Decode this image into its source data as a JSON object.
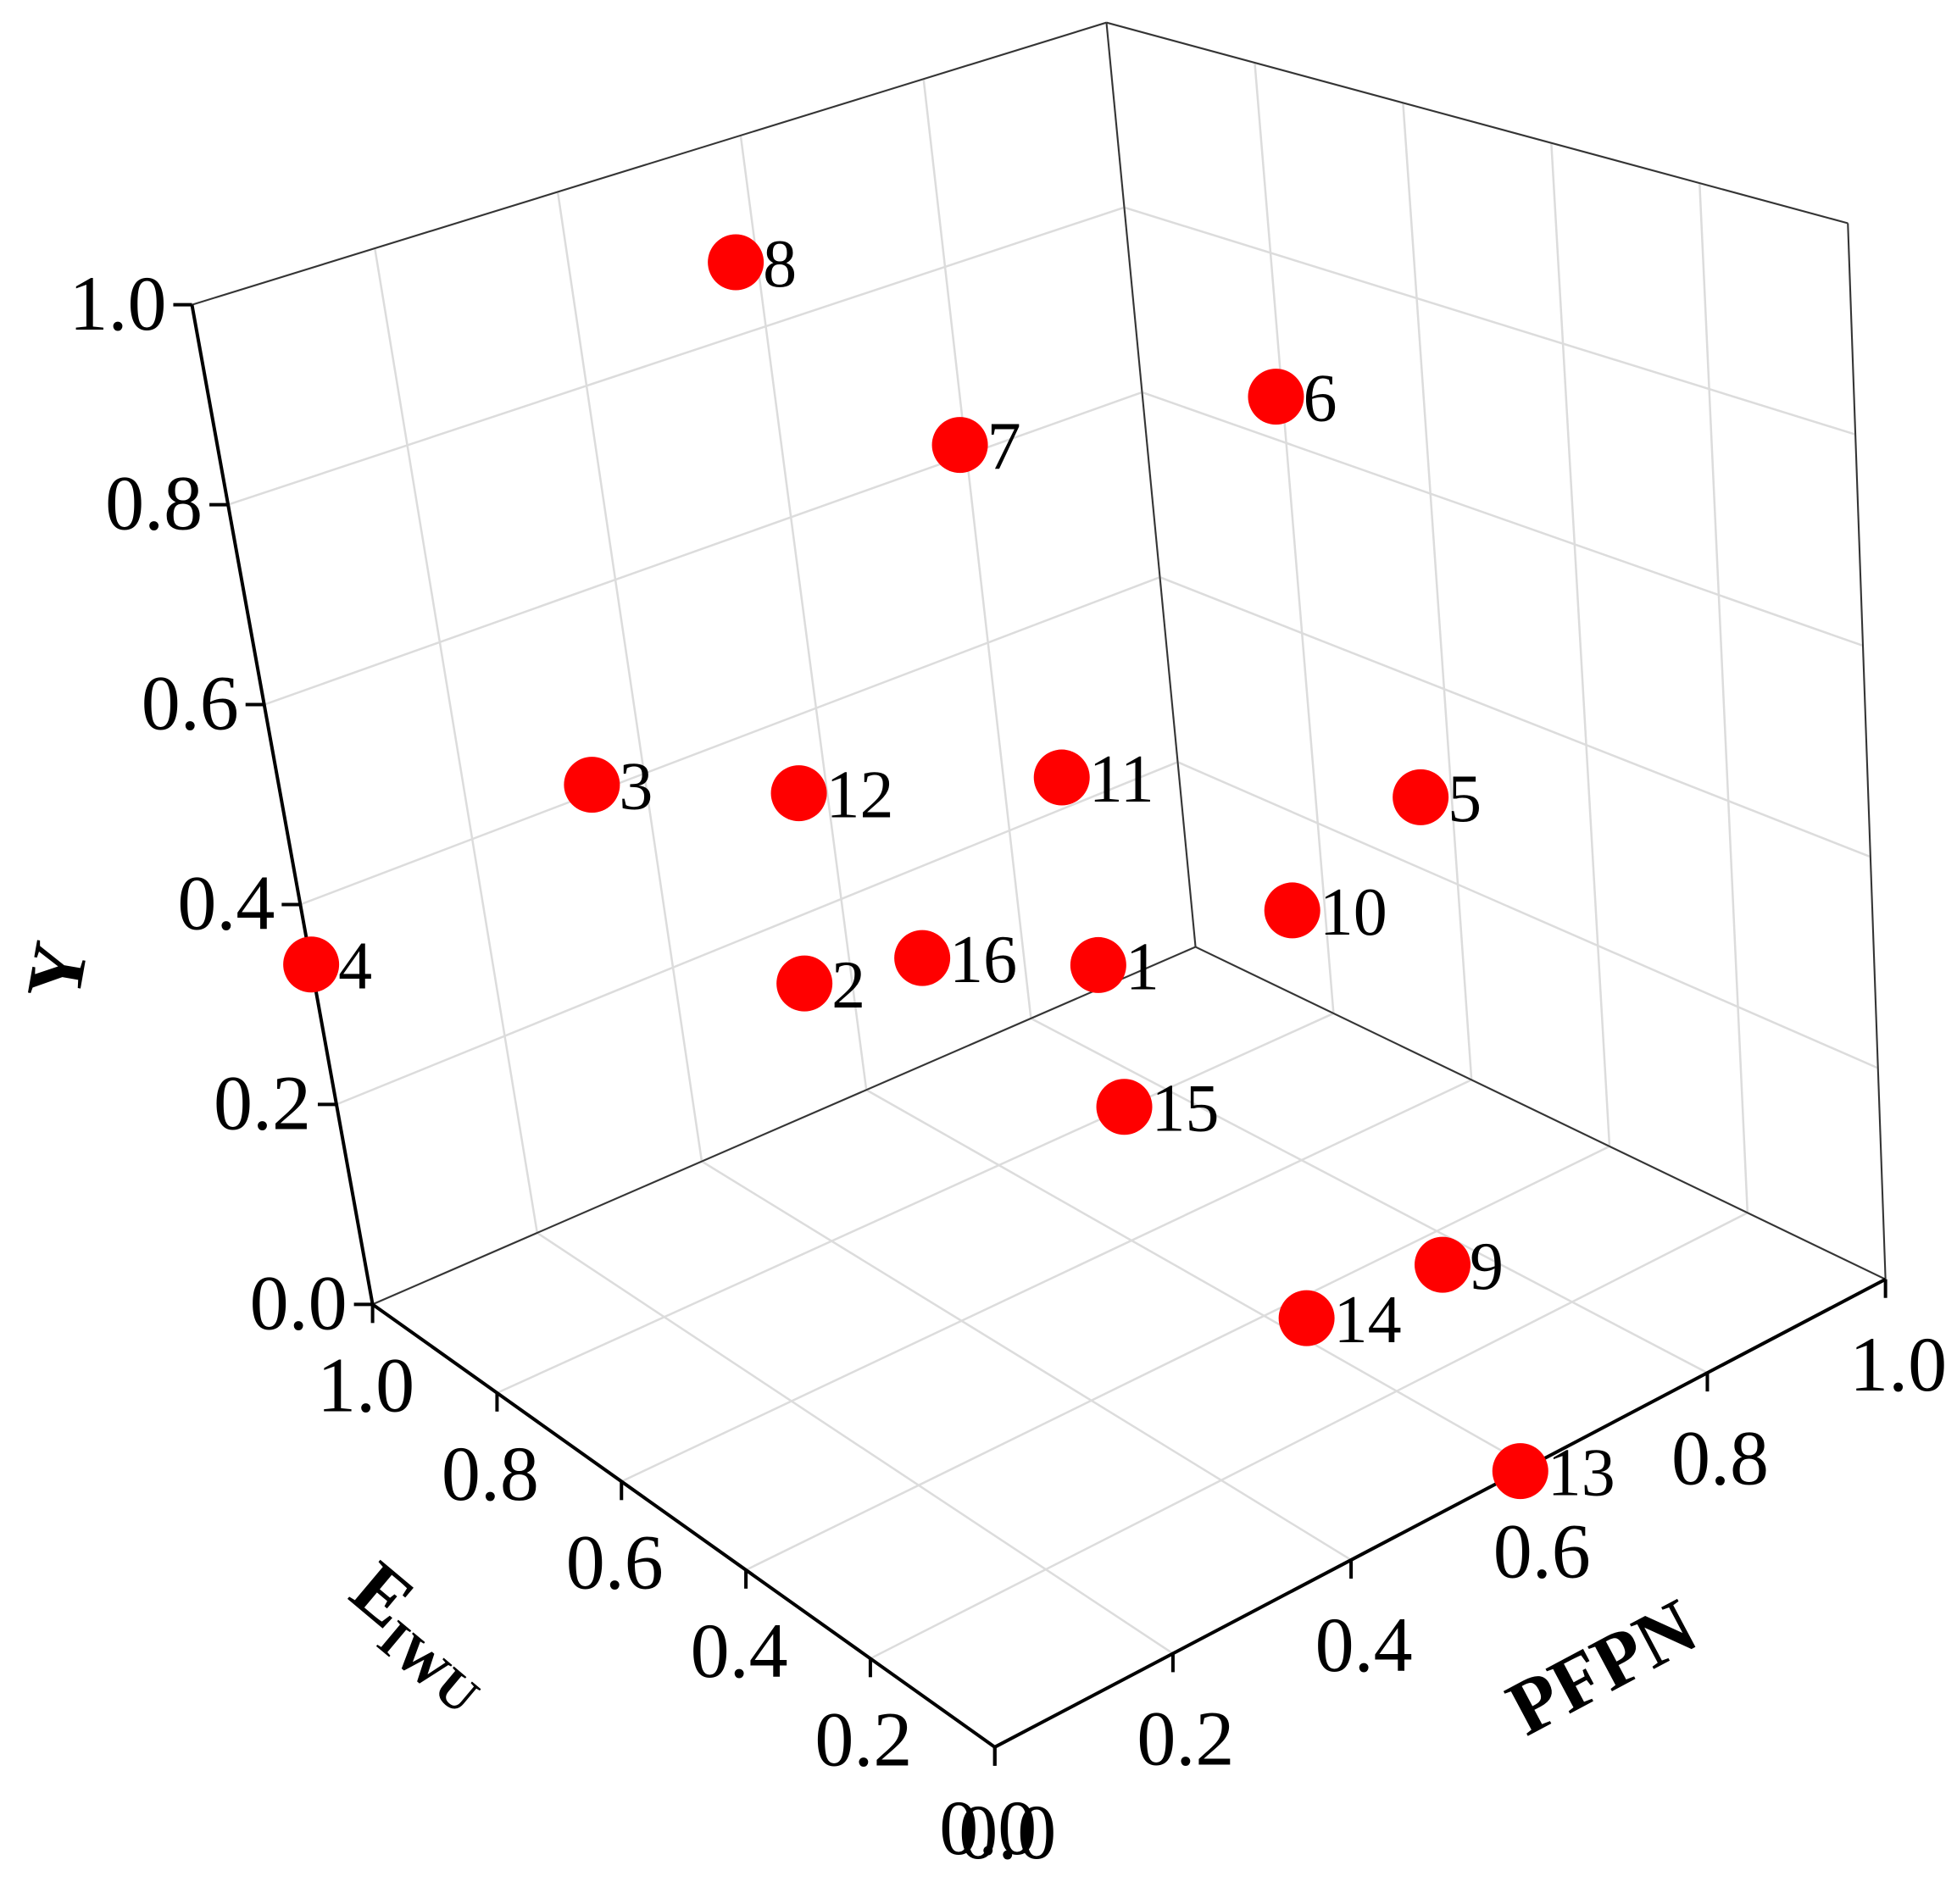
{
  "chart_data": {
    "type": "scatter3d",
    "xlabel": "E",
    "xlabel_sub": "IWU",
    "ylabel": "PFPN",
    "zlabel": "Y",
    "labels": [
      "1",
      "2",
      "3",
      "4",
      "5",
      "6",
      "7",
      "8",
      "9",
      "10",
      "11",
      "12",
      "13",
      "14",
      "15",
      "16"
    ],
    "x": [
      0.48,
      0.73,
      0.76,
      1.0,
      0.35,
      0.42,
      0.65,
      0.85,
      0.27,
      0.43,
      0.55,
      0.7,
      0.0,
      0.29,
      0.49,
      0.61
    ],
    "y": [
      0.51,
      0.36,
      0.18,
      0.0,
      0.78,
      0.71,
      0.54,
      0.47,
      0.71,
      0.69,
      0.54,
      0.36,
      0.59,
      0.57,
      0.53,
      0.41
    ],
    "z": [
      0.35,
      0.3,
      0.55,
      0.34,
      0.45,
      0.85,
      0.8,
      0.95,
      0.05,
      0.35,
      0.5,
      0.5,
      0.0,
      0.05,
      0.2,
      0.35
    ],
    "color": "#ff0000",
    "xlim": [
      0,
      1
    ],
    "ylim": [
      0,
      1
    ],
    "zlim": [
      0,
      1
    ],
    "xticks": [
      {
        "value": 0,
        "label": "0.0"
      },
      0.2,
      0.4,
      0.6,
      0.8,
      {
        "value": 1,
        "label": "1.0"
      }
    ],
    "yticks": [
      {
        "value": 0,
        "label": "0.0"
      },
      0.2,
      0.4,
      0.6,
      0.8,
      {
        "value": 1,
        "label": "1.0"
      }
    ],
    "zticks": [
      {
        "value": 0,
        "label": "0.0"
      },
      0.2,
      0.4,
      0.6,
      0.8,
      {
        "value": 1,
        "label": "1.0"
      }
    ],
    "grid": true
  }
}
